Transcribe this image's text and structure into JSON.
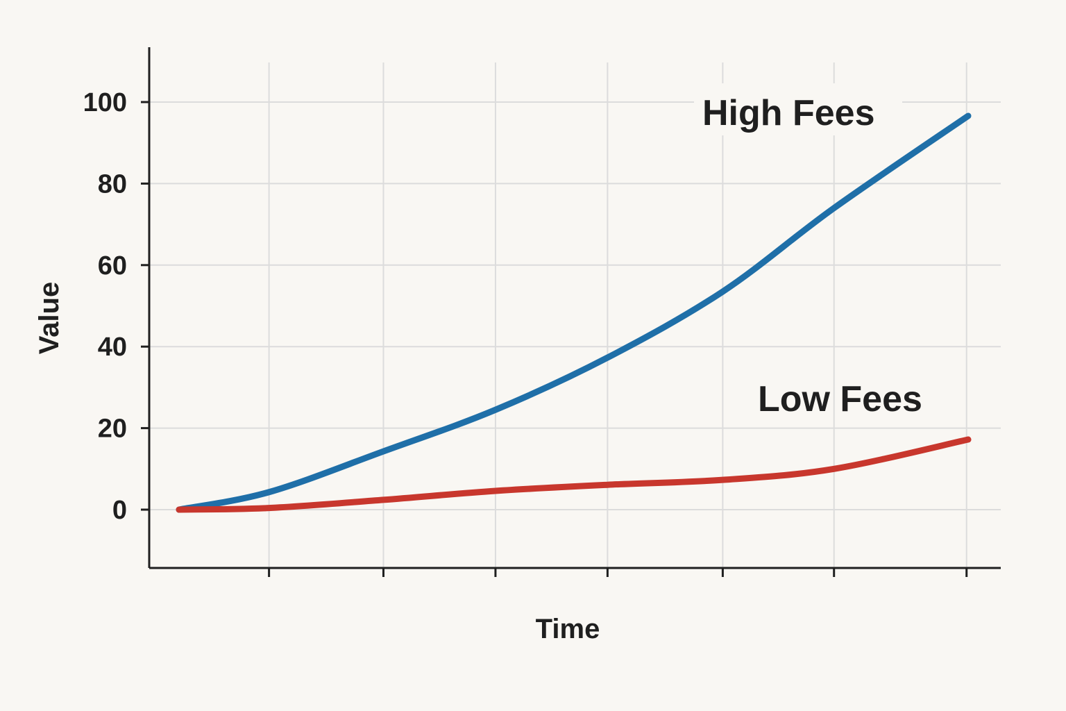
{
  "chart_data": {
    "type": "line",
    "title": "",
    "xlabel": "Time",
    "ylabel": "Value",
    "xlim": [
      0,
      10
    ],
    "ylim": [
      -14.3,
      113
    ],
    "xticks": [
      1.14,
      2.59,
      4.01,
      5.43,
      6.89,
      8.3,
      9.98
    ],
    "yticks": [
      0,
      20,
      40,
      60,
      80,
      100
    ],
    "ytick_labels": [
      "0",
      "20",
      "40",
      "60",
      "80",
      "100"
    ],
    "grid": true,
    "x": [
      0,
      1.14,
      2.59,
      4.01,
      5.43,
      6.89,
      8.3,
      10
    ],
    "series": [
      {
        "name": "High Fees",
        "color": "#1f6fa8",
        "values": [
          0,
          4.3,
          14.3,
          24.5,
          37.3,
          53.5,
          74,
          96.6
        ]
      },
      {
        "name": "Low Fees",
        "color": "#c8372d",
        "values": [
          0,
          0.4,
          2.4,
          4.6,
          6.1,
          7.3,
          10,
          17.2
        ]
      }
    ]
  }
}
